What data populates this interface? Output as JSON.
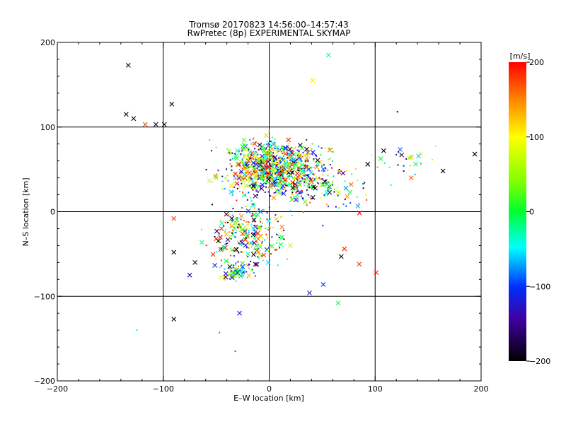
{
  "chart_data": {
    "type": "scatter",
    "title": "Tromsø 20170823 14:56:00–14:57:43",
    "subtitle": "RwPretec (8p) EXPERIMENTAL SKYMAP",
    "xlabel": "E–W location [km]",
    "ylabel": "N–S location [km]",
    "xlim": [
      -200,
      200
    ],
    "ylim": [
      -200,
      200
    ],
    "xticks": [
      "−200",
      "−100",
      "0",
      "100",
      "200"
    ],
    "xtick_values": [
      -200,
      -100,
      0,
      100,
      200
    ],
    "yticks": [
      "−200",
      "−100",
      "0",
      "100",
      "200"
    ],
    "ytick_values": [
      -200,
      -100,
      0,
      100,
      200
    ],
    "grid_lines_x": [
      -100,
      0,
      100
    ],
    "grid_lines_y": [
      -100,
      0,
      100
    ],
    "colorbar": {
      "label": "[m/s]",
      "range": [
        -200,
        200
      ],
      "ticks": [
        "200",
        "100",
        "0",
        "−100",
        "−200"
      ],
      "tick_values": [
        200,
        100,
        0,
        -100,
        -200
      ],
      "colormap": "black-purple-blue-cyan-green-yellow-orange-red"
    },
    "markers": {
      "large": "x",
      "small": "dot"
    },
    "sample_points": [
      {
        "x": -133,
        "y": 173,
        "v": -200,
        "m": "x"
      },
      {
        "x": -135,
        "y": 115,
        "v": -200,
        "m": "x"
      },
      {
        "x": -128,
        "y": 110,
        "v": -200,
        "m": "x"
      },
      {
        "x": -92,
        "y": 127,
        "v": -200,
        "m": "x"
      },
      {
        "x": -117,
        "y": 103,
        "v": 180,
        "m": "x"
      },
      {
        "x": -107,
        "y": 103,
        "v": -190,
        "m": "x"
      },
      {
        "x": -99,
        "y": 103,
        "v": -195,
        "m": "x"
      },
      {
        "x": 56,
        "y": 185,
        "v": -20,
        "m": "x"
      },
      {
        "x": 41,
        "y": 155,
        "v": 110,
        "m": "x"
      },
      {
        "x": 121,
        "y": 118,
        "v": -200,
        "m": "dot"
      },
      {
        "x": 194,
        "y": 68,
        "v": -200,
        "m": "x"
      },
      {
        "x": 164,
        "y": 48,
        "v": -200,
        "m": "x"
      },
      {
        "x": 134,
        "y": 40,
        "v": 170,
        "m": "x"
      },
      {
        "x": 108,
        "y": 72,
        "v": -200,
        "m": "x"
      },
      {
        "x": 93,
        "y": 56,
        "v": -200,
        "m": "x"
      },
      {
        "x": 10,
        "y": 45,
        "v": 190,
        "m": "x"
      },
      {
        "x": 15,
        "y": 75,
        "v": -90,
        "m": "x"
      },
      {
        "x": -5,
        "y": 60,
        "v": 40,
        "m": "x"
      },
      {
        "x": -30,
        "y": 72,
        "v": -30,
        "m": "x"
      },
      {
        "x": -50,
        "y": 40,
        "v": 60,
        "m": "x"
      },
      {
        "x": 25,
        "y": 55,
        "v": 20,
        "m": "x"
      },
      {
        "x": 40,
        "y": 35,
        "v": 150,
        "m": "x"
      },
      {
        "x": -15,
        "y": 30,
        "v": -200,
        "m": "x"
      },
      {
        "x": -90,
        "y": -8,
        "v": 180,
        "m": "x"
      },
      {
        "x": -90,
        "y": -48,
        "v": -200,
        "m": "x"
      },
      {
        "x": -30,
        "y": -72,
        "v": -120,
        "m": "x"
      },
      {
        "x": -25,
        "y": -65,
        "v": -90,
        "m": "x"
      },
      {
        "x": -35,
        "y": -78,
        "v": -140,
        "m": "x"
      },
      {
        "x": -28,
        "y": -120,
        "v": -110,
        "m": "x"
      },
      {
        "x": -90,
        "y": -127,
        "v": -200,
        "m": "x"
      },
      {
        "x": 38,
        "y": -96,
        "v": -110,
        "m": "x"
      },
      {
        "x": 51,
        "y": -86,
        "v": -100,
        "m": "x"
      },
      {
        "x": 65,
        "y": -108,
        "v": -10,
        "m": "x"
      },
      {
        "x": 85,
        "y": -62,
        "v": 180,
        "m": "x"
      },
      {
        "x": 101,
        "y": -72,
        "v": 190,
        "m": "x"
      },
      {
        "x": 71,
        "y": -44,
        "v": 185,
        "m": "x"
      },
      {
        "x": 68,
        "y": -53,
        "v": -200,
        "m": "x"
      },
      {
        "x": -10,
        "y": -20,
        "v": 130,
        "m": "x"
      },
      {
        "x": -45,
        "y": -20,
        "v": 180,
        "m": "x"
      },
      {
        "x": 20,
        "y": -40,
        "v": 70,
        "m": "x"
      },
      {
        "x": -20,
        "y": -50,
        "v": -20,
        "m": "x"
      },
      {
        "x": -70,
        "y": -60,
        "v": -200,
        "m": "x"
      },
      {
        "x": -75,
        "y": -75,
        "v": -140,
        "m": "x"
      },
      {
        "x": -125,
        "y": -140,
        "v": -10,
        "m": "dot"
      },
      {
        "x": -47,
        "y": -143,
        "v": 170,
        "m": "dot"
      },
      {
        "x": -32,
        "y": -165,
        "v": -80,
        "m": "dot"
      }
    ]
  }
}
